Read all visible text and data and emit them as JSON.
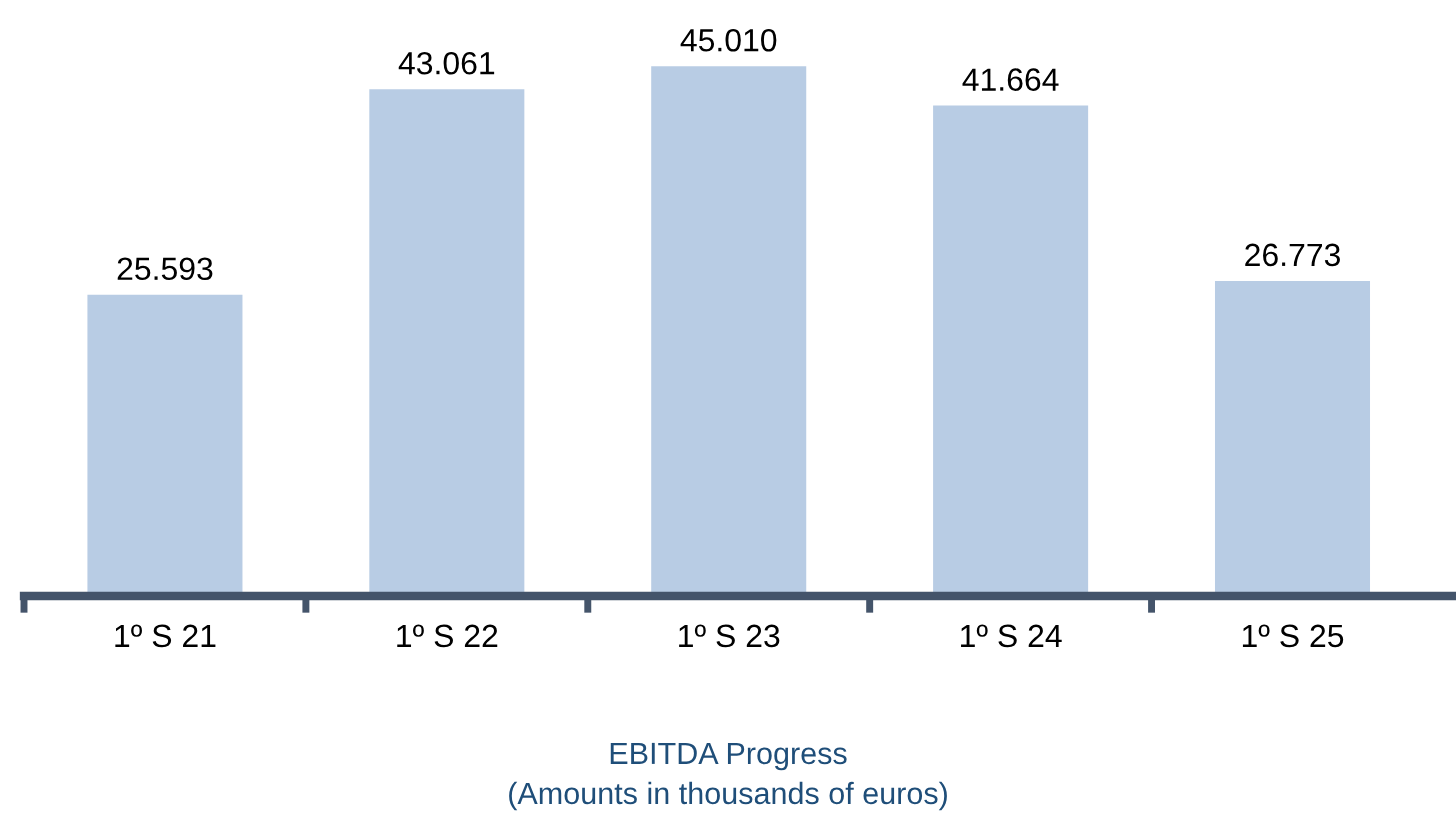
{
  "chart_data": {
    "type": "bar",
    "title": "EBITDA Progress",
    "subtitle": "(Amounts in thousands of euros)",
    "categories": [
      "1º S 21",
      "1º S 22",
      "1º S 23",
      "1º S 24",
      "1º S 25"
    ],
    "values": [
      25593,
      43061,
      45010,
      41664,
      26773
    ],
    "value_labels": [
      "25.593",
      "43.061",
      "45.010",
      "41.664",
      "26.773"
    ],
    "color": "#b8cce4",
    "grid": false,
    "legend": false
  }
}
